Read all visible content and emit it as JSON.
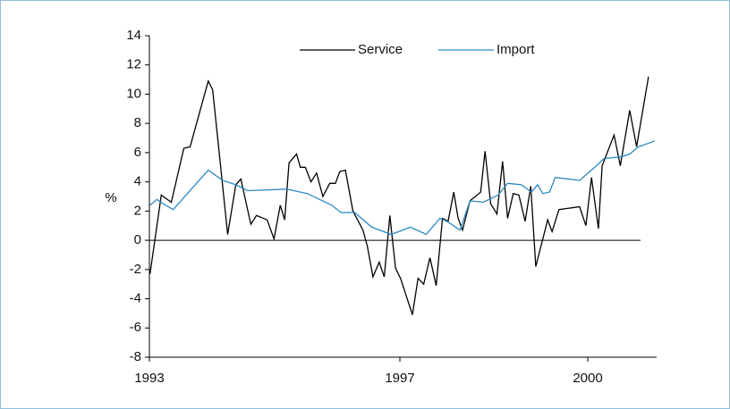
{
  "chart_data": {
    "type": "line",
    "y_label": "%",
    "xlim": [
      1993,
      2001.1
    ],
    "xticks": [
      1993,
      1997,
      2000
    ],
    "ylim": [
      -8,
      14
    ],
    "yticks": [
      -8,
      -6,
      -4,
      -2,
      0,
      2,
      4,
      6,
      8,
      10,
      12,
      14
    ],
    "zero_line": true,
    "legend": "top",
    "series": [
      {
        "name": "Service",
        "color": "#000000",
        "x": [
          1993.01,
          1993.19,
          1993.35,
          1993.55,
          1993.65,
          1993.94,
          1994.01,
          1994.25,
          1994.38,
          1994.46,
          1994.62,
          1994.71,
          1994.88,
          1994.99,
          1995.09,
          1995.16,
          1995.23,
          1995.35,
          1995.41,
          1995.49,
          1995.58,
          1995.67,
          1995.77,
          1995.88,
          1995.97,
          1996.04,
          1996.13,
          1996.25,
          1996.41,
          1996.48,
          1996.57,
          1996.67,
          1996.75,
          1996.84,
          1996.93,
          1997.01,
          1997.2,
          1997.29,
          1997.38,
          1997.48,
          1997.58,
          1997.68,
          1997.77,
          1997.86,
          1997.93,
          1998.0,
          1998.12,
          1998.29,
          1998.36,
          1998.45,
          1998.55,
          1998.64,
          1998.72,
          1998.81,
          1998.9,
          1999.0,
          1999.09,
          1999.17,
          1999.36,
          1999.43,
          1999.54,
          1999.87,
          1999.97,
          2000.06,
          2000.17,
          2000.23,
          2000.42,
          2000.52,
          2000.67,
          2000.78,
          2000.97
        ],
        "values": [
          -2.3,
          3.1,
          2.6,
          6.3,
          6.4,
          10.9,
          10.3,
          0.4,
          3.8,
          4.2,
          1.1,
          1.7,
          1.4,
          0.1,
          2.4,
          1.4,
          5.3,
          5.9,
          5.0,
          5.0,
          4.0,
          4.6,
          3.0,
          3.9,
          3.9,
          4.7,
          4.8,
          2.0,
          0.7,
          -0.4,
          -2.5,
          -1.5,
          -2.5,
          1.7,
          -1.9,
          -2.6,
          -5.1,
          -2.6,
          -3.0,
          -1.2,
          -3.1,
          1.5,
          1.3,
          3.3,
          1.5,
          0.7,
          2.7,
          3.3,
          6.1,
          2.5,
          1.8,
          5.4,
          1.5,
          3.2,
          3.1,
          1.3,
          3.7,
          -1.8,
          1.4,
          0.6,
          2.1,
          2.3,
          1.0,
          4.3,
          0.8,
          5.1,
          7.2,
          5.1,
          8.9,
          6.4,
          11.2
        ]
      },
      {
        "name": "Import",
        "color": "#2a88c4",
        "x": [
          1993.01,
          1993.12,
          1993.22,
          1993.38,
          1993.94,
          1994.17,
          1994.38,
          1994.57,
          1995.19,
          1995.52,
          1995.91,
          1996.06,
          1996.28,
          1996.55,
          1996.86,
          1997.17,
          1997.42,
          1997.64,
          1997.75,
          1997.96,
          1998.12,
          1998.33,
          1998.57,
          1998.72,
          1998.94,
          1999.1,
          1999.2,
          1999.28,
          1999.39,
          1999.48,
          1999.87,
          2000.14,
          2000.26,
          2000.52,
          2000.67,
          2000.81,
          2001.07
        ],
        "values": [
          2.4,
          2.8,
          2.5,
          2.1,
          4.8,
          4.1,
          3.8,
          3.4,
          3.5,
          3.2,
          2.4,
          1.9,
          1.9,
          0.9,
          0.4,
          0.9,
          0.4,
          1.5,
          1.3,
          0.7,
          2.7,
          2.6,
          3.1,
          3.9,
          3.8,
          3.3,
          3.8,
          3.2,
          3.3,
          4.3,
          4.1,
          5.1,
          5.6,
          5.7,
          5.9,
          6.4,
          6.8
        ]
      }
    ]
  }
}
